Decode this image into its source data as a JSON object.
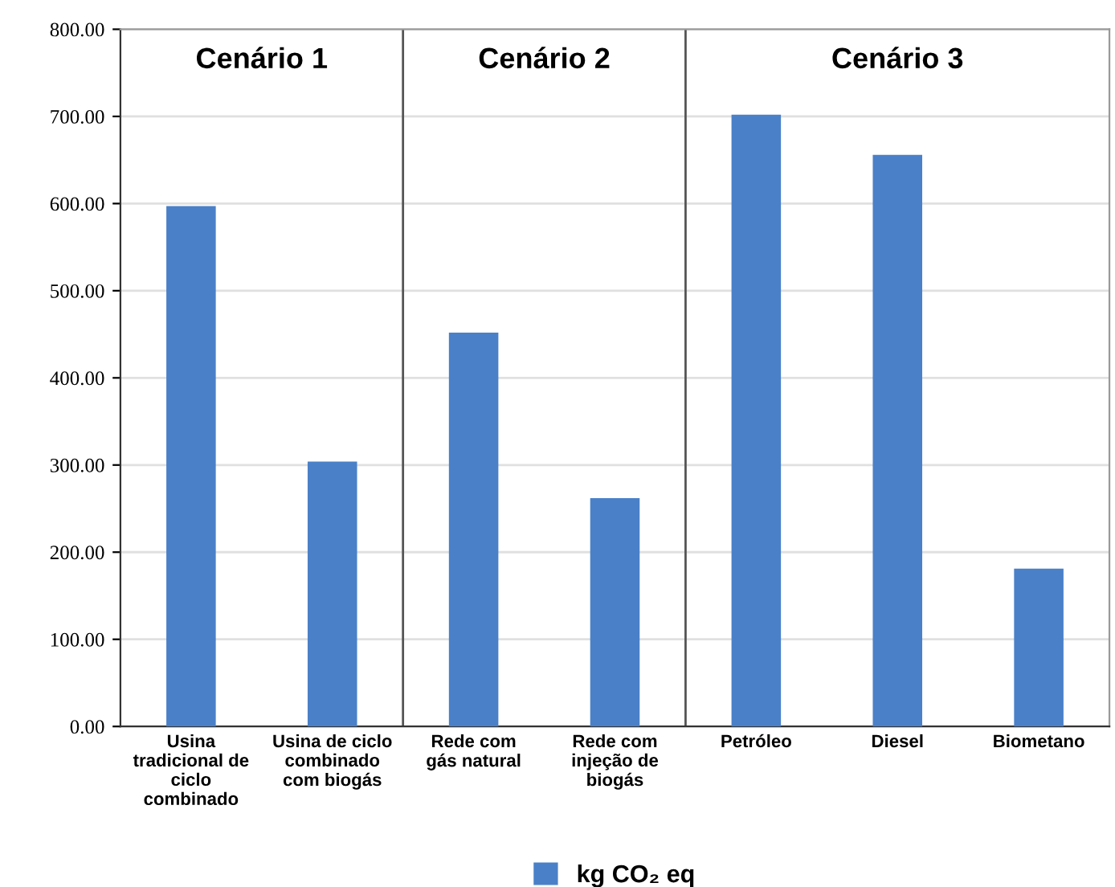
{
  "chart_data": {
    "type": "bar",
    "categories": [
      "Usina\ntradicional de\nciclo\ncombinado",
      "Usina de ciclo\ncombinado\ncom biogás",
      "Rede com\ngás natural",
      "Rede com\ninjeção de\nbiogás",
      "Petróleo",
      "Diesel",
      "Biometano"
    ],
    "series": [
      {
        "name": "kg CO₂ eq",
        "color": "#4a80c8",
        "values": [
          597,
          304,
          452,
          262,
          702,
          656,
          181
        ]
      }
    ],
    "ylim": [
      0,
      800
    ],
    "yticks": [
      {
        "value": 0,
        "label": "0.00"
      },
      {
        "value": 100,
        "label": "100.00"
      },
      {
        "value": 200,
        "label": "200.00"
      },
      {
        "value": 300,
        "label": "300.00"
      },
      {
        "value": 400,
        "label": "400.00"
      },
      {
        "value": 500,
        "label": "500.00"
      },
      {
        "value": 600,
        "label": "600.00"
      },
      {
        "value": 700,
        "label": "700.00"
      },
      {
        "value": 800,
        "label": "800.00"
      }
    ],
    "annotations": [
      "Cenário 1",
      "Cenário 2",
      "Cenário 3"
    ],
    "grid": "y",
    "legend": "bottom"
  }
}
